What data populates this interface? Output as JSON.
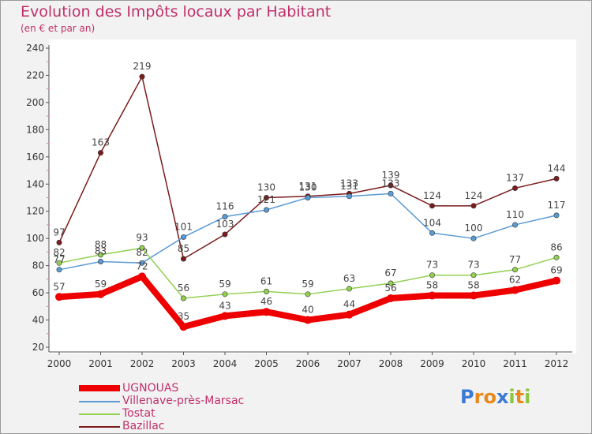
{
  "title": "Evolution des Impôts locaux par Habitant",
  "subtitle": "(en € et par an)",
  "logo": {
    "letters": [
      "P",
      "r",
      "o",
      "x",
      "i",
      "t",
      "i"
    ],
    "colors": [
      "#3a7bd5",
      "#e8891a",
      "#e8891a",
      "#3a7bd5",
      "#8dc63f",
      "#e8891a",
      "#8dc63f"
    ]
  },
  "colors": {
    "ugnouas": "#ee0000",
    "villenave": "#5a9bd5",
    "tostat": "#92d050",
    "bazillac": "#7b1c1c",
    "axis": "#555555",
    "title": "#c0306a"
  },
  "chart_data": {
    "type": "line",
    "title": "Evolution des Impôts locaux par Habitant",
    "subtitle": "(en € et par an)",
    "x": [
      "2000",
      "2001",
      "2002",
      "2003",
      "2004",
      "2005",
      "2006",
      "2007",
      "2008",
      "2009",
      "2010",
      "2011",
      "2012"
    ],
    "ylim": [
      20,
      240
    ],
    "yticks": [
      "20",
      "40",
      "60",
      "80",
      "100",
      "120",
      "140",
      "160",
      "180",
      "200",
      "220",
      "240"
    ],
    "grid": false,
    "legend_position": "bottom-left",
    "series": [
      {
        "key": "ugnouas",
        "name": "UGNOUAS",
        "values": [
          57,
          59,
          72,
          35,
          43,
          46,
          40,
          44,
          56,
          58,
          58,
          62,
          69
        ],
        "labels": [
          "57",
          "59",
          "72",
          "35",
          "43",
          "46",
          "40",
          "44",
          "56",
          "58",
          "58",
          "62",
          "69"
        ]
      },
      {
        "key": "villenave",
        "name": "Villenave-près-Marsac",
        "values": [
          77,
          83,
          82,
          101,
          116,
          121,
          130,
          131,
          133,
          104,
          100,
          110,
          117
        ],
        "labels": [
          "77",
          "83",
          "82",
          "101",
          "116",
          "121",
          "130",
          "131",
          "133",
          "104",
          "100",
          "110",
          "117"
        ]
      },
      {
        "key": "tostat",
        "name": "Tostat",
        "values": [
          82,
          88,
          93,
          56,
          59,
          61,
          59,
          63,
          67,
          73,
          73,
          77,
          86
        ],
        "labels": [
          "82",
          "88",
          "93",
          "56",
          "59",
          "61",
          "59",
          "63",
          "67",
          "73",
          "73",
          "77",
          "86"
        ]
      },
      {
        "key": "bazillac",
        "name": "Bazillac",
        "values": [
          97,
          163,
          219,
          85,
          103,
          130,
          131,
          133,
          139,
          124,
          124,
          137,
          144
        ],
        "labels": [
          "97",
          "163",
          "219",
          "85",
          "103",
          "130",
          "131",
          "133",
          "139",
          "124",
          "124",
          "137",
          "144"
        ]
      }
    ]
  }
}
